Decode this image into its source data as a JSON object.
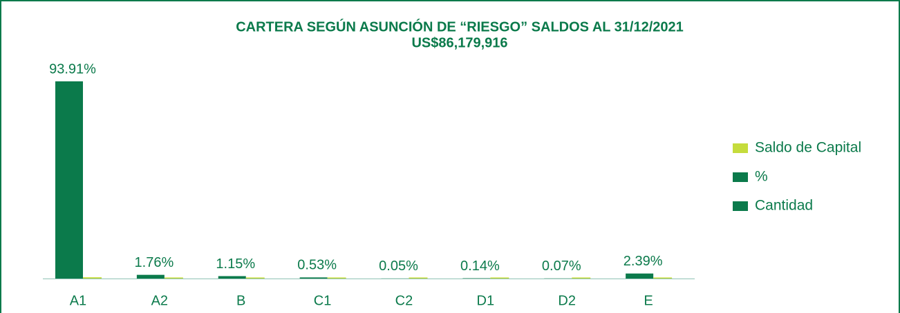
{
  "chart_data": {
    "type": "bar",
    "title": "CARTERA SEGÚN ASUNCIÓN DE “RIESGO” SALDOS AL 31/12/2021",
    "subtitle": "US$86,179,916",
    "categories": [
      "A1",
      "A2",
      "B",
      "C1",
      "C2",
      "D1",
      "D2",
      "E"
    ],
    "series": [
      {
        "name": "Cantidad",
        "color": "#0b7a4b",
        "values": [
          0,
          0,
          0,
          0,
          0,
          0,
          0,
          0
        ]
      },
      {
        "name": "%",
        "color": "#0b7a4b",
        "values": [
          93.91,
          1.76,
          1.15,
          0.53,
          0.05,
          0.14,
          0.07,
          2.39
        ],
        "value_labels": [
          "93.91%",
          "1.76%",
          "1.15%",
          "0.53%",
          "0.05%",
          "0.14%",
          "0.07%",
          "2.39%"
        ]
      },
      {
        "name": "Saldo de Capital",
        "color": "#c5dc3c",
        "values": [
          0.6,
          0.5,
          0.5,
          0.5,
          0.5,
          0.5,
          0.5,
          0.5
        ]
      }
    ],
    "legend": "right"
  }
}
